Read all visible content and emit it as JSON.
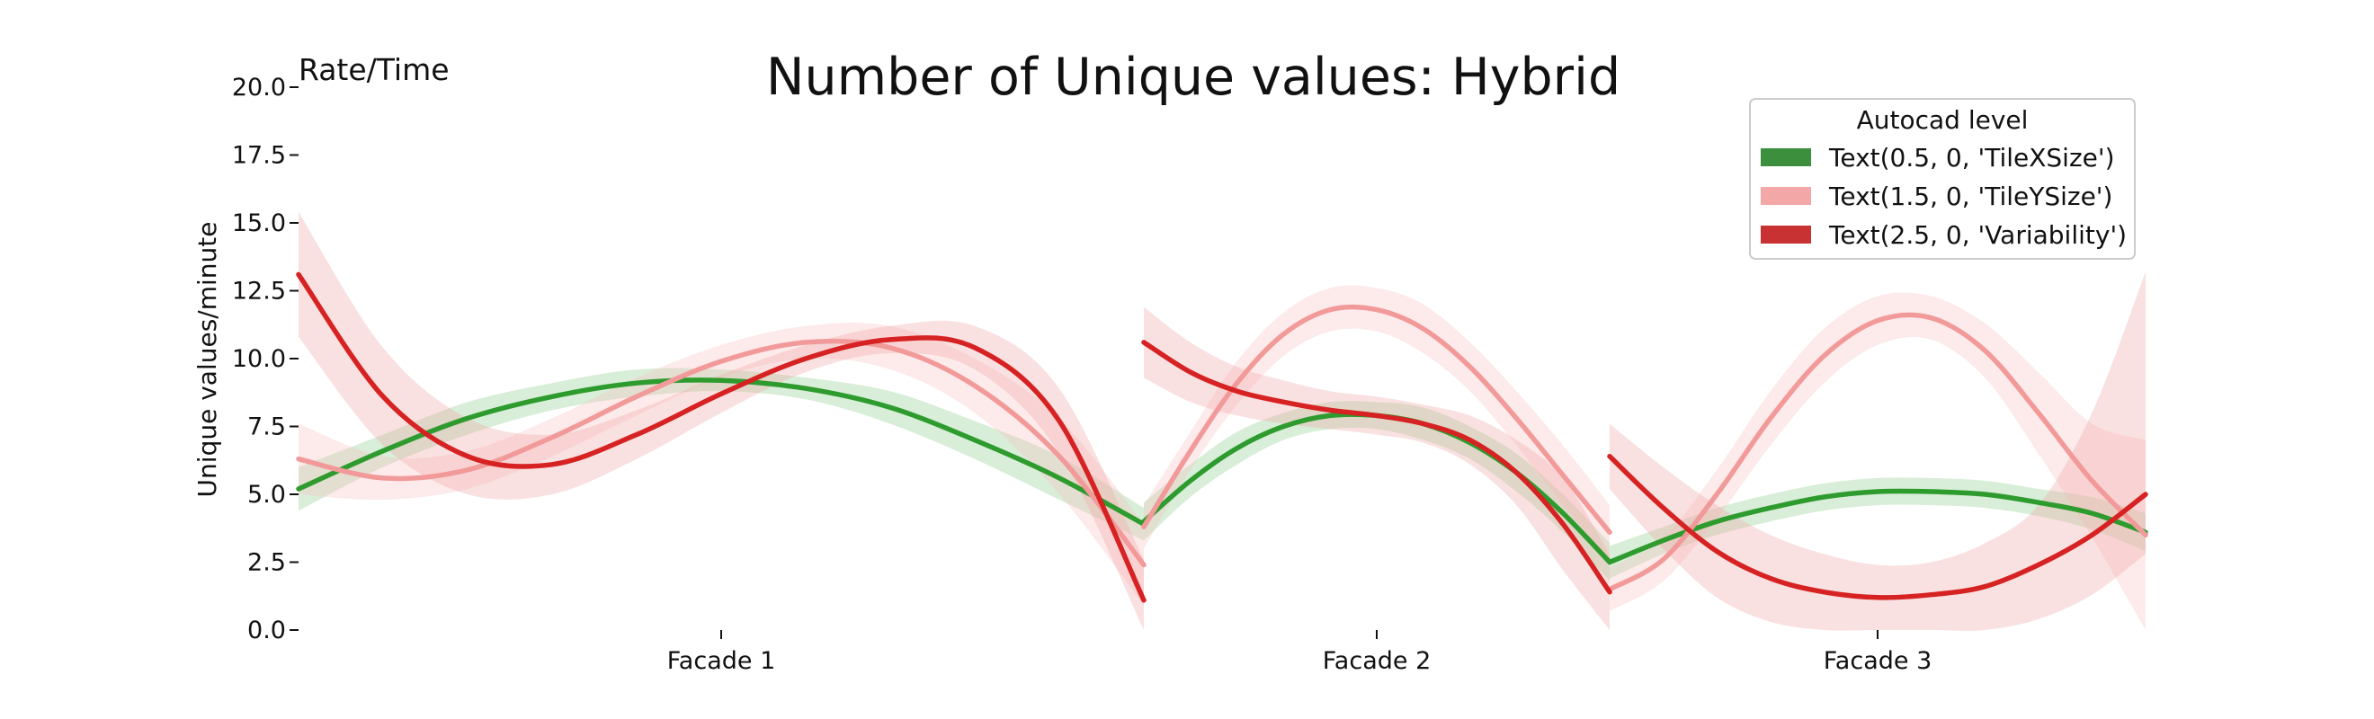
{
  "chart_data": {
    "type": "line",
    "title": "Number of Unique values: Hybrid",
    "corner_label": "Rate/Time",
    "xlabel": "",
    "ylabel": "Unique values/minute",
    "ylim": [
      0,
      20
    ],
    "yticks": [
      "0.0",
      "2.5",
      "5.0",
      "7.5",
      "10.0",
      "12.5",
      "15.0",
      "17.5",
      "20.0"
    ],
    "ytick_values": [
      0,
      2.5,
      5,
      7.5,
      10,
      12.5,
      15,
      17.5,
      20
    ],
    "grid": false,
    "legend": {
      "title": "Autocad level",
      "placement": "top-right"
    },
    "groups": [
      {
        "label": "Facade 1",
        "x_range": [
          0,
          1
        ]
      },
      {
        "label": "Facade 2",
        "x_range": [
          0,
          1
        ]
      },
      {
        "label": "Facade 3",
        "x_range": [
          0,
          1
        ]
      }
    ],
    "series": [
      {
        "name": "Text(0.5, 0, 'TileXSize')",
        "color": "#2e9b2e",
        "legend_color": "#3c8f3c",
        "band_color": "#8fcf8f",
        "segments": [
          {
            "x": [
              0,
              0.1,
              0.2,
              0.3,
              0.4,
              0.5,
              0.6,
              0.7,
              0.8,
              0.9,
              1.0
            ],
            "y": [
              5.2,
              6.6,
              7.8,
              8.6,
              9.1,
              9.2,
              8.9,
              8.2,
              7.0,
              5.6,
              3.9
            ],
            "lo": [
              4.4,
              6.0,
              7.2,
              8.1,
              8.6,
              8.8,
              8.5,
              7.6,
              6.3,
              4.8,
              3.3
            ],
            "hi": [
              6.0,
              7.2,
              8.4,
              9.1,
              9.6,
              9.6,
              9.3,
              8.8,
              7.7,
              6.4,
              4.5
            ]
          },
          {
            "x": [
              0,
              0.1,
              0.2,
              0.3,
              0.4,
              0.5,
              0.6,
              0.7,
              0.8,
              0.9,
              1.0
            ],
            "y": [
              4.0,
              5.5,
              6.7,
              7.5,
              7.9,
              7.9,
              7.6,
              6.9,
              5.8,
              4.3,
              2.5
            ],
            "lo": [
              3.3,
              4.9,
              6.1,
              7.0,
              7.4,
              7.4,
              7.0,
              6.3,
              5.1,
              3.6,
              1.8
            ],
            "hi": [
              4.7,
              6.1,
              7.3,
              8.0,
              8.4,
              8.4,
              8.2,
              7.5,
              6.5,
              5.0,
              3.2
            ]
          },
          {
            "x": [
              0,
              0.1,
              0.2,
              0.3,
              0.4,
              0.5,
              0.6,
              0.7,
              0.8,
              0.9,
              1.0
            ],
            "y": [
              2.5,
              3.3,
              4.0,
              4.5,
              4.9,
              5.1,
              5.1,
              5.0,
              4.7,
              4.3,
              3.6
            ],
            "lo": [
              1.9,
              2.8,
              3.5,
              4.0,
              4.4,
              4.6,
              4.6,
              4.5,
              4.2,
              3.7,
              2.9
            ],
            "hi": [
              3.1,
              3.8,
              4.5,
              5.0,
              5.4,
              5.6,
              5.6,
              5.5,
              5.2,
              4.9,
              4.3
            ]
          }
        ]
      },
      {
        "name": "Text(1.5, 0, 'TileYSize')",
        "color": "#f29a9a",
        "legend_color": "#f4a7a7",
        "band_color": "#f8c3c3",
        "segments": [
          {
            "x": [
              0,
              0.1,
              0.2,
              0.3,
              0.4,
              0.5,
              0.6,
              0.7,
              0.8,
              0.9,
              1.0
            ],
            "y": [
              6.3,
              5.6,
              5.9,
              7.1,
              8.6,
              9.9,
              10.6,
              10.4,
              9.0,
              6.4,
              2.4
            ],
            "lo": [
              5.0,
              4.8,
              5.2,
              6.4,
              7.9,
              9.3,
              10.0,
              9.6,
              8.0,
              5.0,
              0.9
            ],
            "hi": [
              7.6,
              6.4,
              6.6,
              7.8,
              9.3,
              10.5,
              11.2,
              11.2,
              10.0,
              7.8,
              3.9
            ]
          },
          {
            "x": [
              0,
              0.1,
              0.2,
              0.3,
              0.4,
              0.5,
              0.6,
              0.7,
              0.8,
              0.9,
              1.0
            ],
            "y": [
              3.8,
              6.6,
              9.1,
              10.9,
              11.8,
              11.8,
              11.1,
              9.7,
              7.8,
              5.7,
              3.6
            ],
            "lo": [
              3.0,
              5.9,
              8.3,
              10.1,
              11.0,
              11.0,
              10.2,
              8.8,
              6.8,
              4.6,
              2.6
            ],
            "hi": [
              4.6,
              7.3,
              9.9,
              11.7,
              12.6,
              12.6,
              12.0,
              10.6,
              8.8,
              6.8,
              4.6
            ]
          },
          {
            "x": [
              0,
              0.1,
              0.2,
              0.3,
              0.4,
              0.5,
              0.6,
              0.7,
              0.8,
              0.9,
              1.0
            ],
            "y": [
              1.5,
              2.6,
              5.0,
              7.8,
              10.1,
              11.4,
              11.5,
              10.3,
              8.0,
              5.5,
              3.5
            ],
            "lo": [
              0.7,
              1.8,
              4.1,
              6.8,
              9.1,
              10.5,
              10.7,
              9.3,
              6.5,
              3.4,
              0.0
            ],
            "hi": [
              2.3,
              3.4,
              5.9,
              8.8,
              11.1,
              12.3,
              12.3,
              11.3,
              9.5,
              7.6,
              7.0
            ]
          }
        ]
      },
      {
        "name": "Text(2.5, 0, 'Variability')",
        "color": "#d62222",
        "legend_color": "#c83232",
        "band_color": "#f2a8a8",
        "segments": [
          {
            "x": [
              0,
              0.1,
              0.2,
              0.3,
              0.4,
              0.5,
              0.6,
              0.7,
              0.8,
              0.9,
              1.0
            ],
            "y": [
              13.1,
              8.6,
              6.4,
              6.1,
              7.2,
              8.7,
              10.0,
              10.7,
              10.4,
              7.7,
              1.1
            ],
            "lo": [
              10.8,
              6.8,
              5.0,
              5.0,
              6.3,
              8.0,
              9.5,
              10.2,
              9.6,
              6.5,
              0.0
            ],
            "hi": [
              15.4,
              10.4,
              7.8,
              7.2,
              8.1,
              9.4,
              10.5,
              11.2,
              11.2,
              8.9,
              2.6
            ]
          },
          {
            "x": [
              0,
              0.1,
              0.2,
              0.3,
              0.4,
              0.5,
              0.6,
              0.7,
              0.8,
              0.9,
              1.0
            ],
            "y": [
              10.6,
              9.5,
              8.8,
              8.4,
              8.1,
              7.9,
              7.6,
              7.0,
              5.8,
              3.9,
              1.4
            ],
            "lo": [
              9.3,
              8.4,
              7.9,
              7.6,
              7.4,
              7.2,
              6.9,
              6.1,
              4.6,
              2.2,
              0.0
            ],
            "hi": [
              11.9,
              10.6,
              9.7,
              9.2,
              8.8,
              8.6,
              8.3,
              7.9,
              7.0,
              5.6,
              2.8
            ]
          },
          {
            "x": [
              0,
              0.1,
              0.2,
              0.3,
              0.4,
              0.5,
              0.6,
              0.7,
              0.8,
              0.9,
              1.0
            ],
            "y": [
              6.4,
              4.5,
              2.9,
              1.9,
              1.4,
              1.2,
              1.3,
              1.6,
              2.4,
              3.5,
              5.0
            ],
            "lo": [
              5.2,
              3.0,
              1.2,
              0.3,
              0.0,
              0.0,
              0.0,
              0.0,
              0.4,
              1.3,
              2.8
            ],
            "hi": [
              7.6,
              6.0,
              4.6,
              3.5,
              2.8,
              2.4,
              2.5,
              3.2,
              4.6,
              8.0,
              13.2
            ]
          }
        ]
      }
    ]
  }
}
